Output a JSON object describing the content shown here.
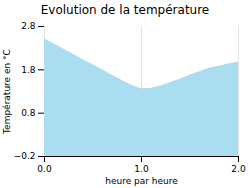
{
  "chart_data": {
    "type": "area",
    "title": "Evolution de la température",
    "x_label": "heure par heure",
    "y_label": "Température en °C",
    "x": [
      0,
      0.1,
      0.2,
      0.3,
      0.4,
      0.5,
      0.6,
      0.7,
      0.8,
      0.9,
      1.0,
      1.1,
      1.2,
      1.3,
      1.4,
      1.5,
      1.6,
      1.7,
      1.8,
      1.9,
      2.0
    ],
    "values": [
      2.5,
      2.38,
      2.26,
      2.14,
      2.02,
      1.9,
      1.78,
      1.66,
      1.54,
      1.43,
      1.35,
      1.37,
      1.42,
      1.5,
      1.58,
      1.67,
      1.75,
      1.83,
      1.88,
      1.93,
      1.97
    ],
    "color": "#aaddf0",
    "xlim": [
      0,
      2
    ],
    "xticks": [
      0,
      1,
      2
    ],
    "ylim": [
      -0.2,
      2.8
    ],
    "yticks": [
      -0.2,
      0.8,
      1.8,
      2.8
    ],
    "grid": true
  }
}
